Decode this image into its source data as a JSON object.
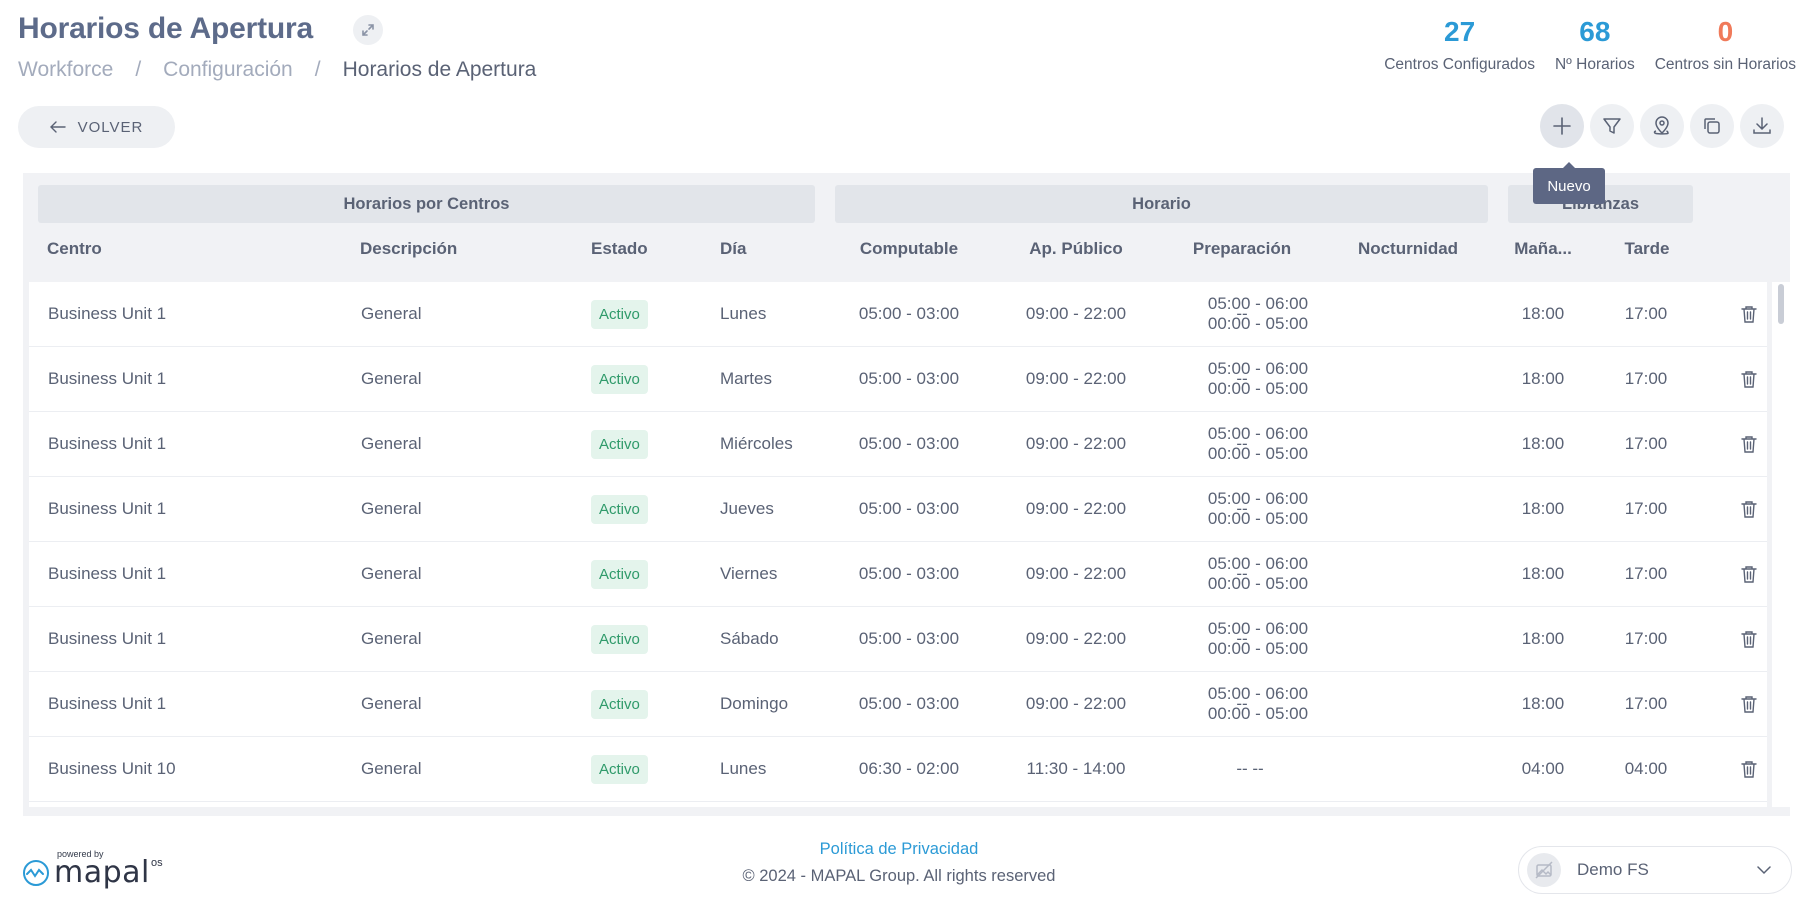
{
  "header": {
    "title": "Horarios de Apertura",
    "breadcrumb": [
      "Workforce",
      "Configuración",
      "Horarios de Apertura"
    ]
  },
  "stats": [
    {
      "value": "27",
      "label": "Centros Configurados",
      "color": "#2b9ad6"
    },
    {
      "value": "68",
      "label": "Nº Horarios",
      "color": "#2b9ad6"
    },
    {
      "value": "0",
      "label": "Centros sin Horarios",
      "color": "#f07a5a"
    }
  ],
  "toolbar": {
    "back_label": "VOLVER",
    "tooltip": "Nuevo",
    "buttons": [
      "plus-icon",
      "filter-icon",
      "location-pin-icon",
      "copy-icon",
      "download-icon"
    ]
  },
  "table": {
    "groups": [
      "Horarios por Centros",
      "Horario",
      "Libranzas"
    ],
    "columns": [
      "Centro",
      "Descripción",
      "Estado",
      "Día",
      "Computable",
      "Ap. Público",
      "Preparación",
      "Nocturnidad",
      "Maña...",
      "Tarde"
    ],
    "rows": [
      {
        "centro": "Business Unit 1",
        "descripcion": "General",
        "estado": "Activo",
        "dia": "Lunes",
        "computable": "05:00 - 03:00",
        "publico": "09:00 - 22:00",
        "preparacion": "--",
        "noct1": "05:00 - 06:00",
        "noct2": "00:00 - 05:00",
        "manana": "18:00",
        "tarde": "17:00"
      },
      {
        "centro": "Business Unit 1",
        "descripcion": "General",
        "estado": "Activo",
        "dia": "Martes",
        "computable": "05:00 - 03:00",
        "publico": "09:00 - 22:00",
        "preparacion": "--",
        "noct1": "05:00 - 06:00",
        "noct2": "00:00 - 05:00",
        "manana": "18:00",
        "tarde": "17:00"
      },
      {
        "centro": "Business Unit 1",
        "descripcion": "General",
        "estado": "Activo",
        "dia": "Miércoles",
        "computable": "05:00 - 03:00",
        "publico": "09:00 - 22:00",
        "preparacion": "--",
        "noct1": "05:00 - 06:00",
        "noct2": "00:00 - 05:00",
        "manana": "18:00",
        "tarde": "17:00"
      },
      {
        "centro": "Business Unit 1",
        "descripcion": "General",
        "estado": "Activo",
        "dia": "Jueves",
        "computable": "05:00 - 03:00",
        "publico": "09:00 - 22:00",
        "preparacion": "--",
        "noct1": "05:00 - 06:00",
        "noct2": "00:00 - 05:00",
        "manana": "18:00",
        "tarde": "17:00"
      },
      {
        "centro": "Business Unit 1",
        "descripcion": "General",
        "estado": "Activo",
        "dia": "Viernes",
        "computable": "05:00 - 03:00",
        "publico": "09:00 - 22:00",
        "preparacion": "--",
        "noct1": "05:00 - 06:00",
        "noct2": "00:00 - 05:00",
        "manana": "18:00",
        "tarde": "17:00"
      },
      {
        "centro": "Business Unit 1",
        "descripcion": "General",
        "estado": "Activo",
        "dia": "Sábado",
        "computable": "05:00 - 03:00",
        "publico": "09:00 - 22:00",
        "preparacion": "--",
        "noct1": "05:00 - 06:00",
        "noct2": "00:00 - 05:00",
        "manana": "18:00",
        "tarde": "17:00"
      },
      {
        "centro": "Business Unit 1",
        "descripcion": "General",
        "estado": "Activo",
        "dia": "Domingo",
        "computable": "05:00 - 03:00",
        "publico": "09:00 - 22:00",
        "preparacion": "--",
        "noct1": "05:00 - 06:00",
        "noct2": "00:00 - 05:00",
        "manana": "18:00",
        "tarde": "17:00"
      },
      {
        "centro": "Business Unit 10",
        "descripcion": "General",
        "estado": "Activo",
        "dia": "Lunes",
        "computable": "06:30 - 02:00",
        "publico": "11:30 - 14:00",
        "preparacion": "--",
        "noct1": "--",
        "noct2": "",
        "manana": "04:00",
        "tarde": "04:00"
      }
    ]
  },
  "footer": {
    "privacy": "Política de Privacidad",
    "copyright": "© 2024 - MAPAL Group. All rights reserved",
    "logo_powered": "powered by",
    "logo_brand": "mapal",
    "logo_os": "os"
  },
  "account": {
    "name": "Demo FS"
  }
}
